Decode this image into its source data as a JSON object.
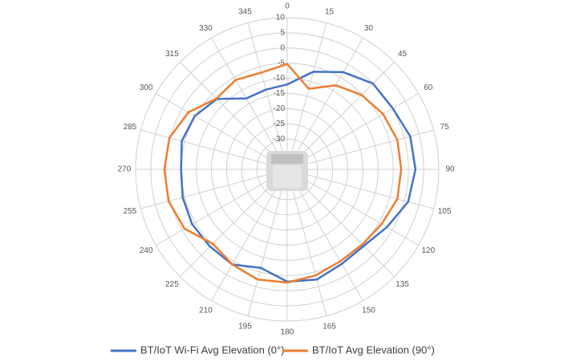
{
  "chart_data": {
    "type": "polar",
    "theta": [
      0,
      15,
      30,
      45,
      60,
      75,
      90,
      105,
      120,
      135,
      150,
      165,
      180,
      195,
      210,
      225,
      240,
      255,
      270,
      285,
      300,
      315,
      330,
      345
    ],
    "thetaticks": [
      0,
      15,
      30,
      45,
      60,
      75,
      90,
      105,
      120,
      135,
      150,
      165,
      180,
      195,
      210,
      225,
      240,
      255,
      270,
      285,
      300,
      315,
      330,
      345
    ],
    "rlim": [
      -40,
      10
    ],
    "rticks": [
      10,
      5,
      0,
      -5,
      -10,
      -15,
      -20,
      -25,
      -30
    ],
    "series": [
      {
        "name": "BT/IoT Wi-Fi Avg Elevation (0°)",
        "color": "#4472c4",
        "values": [
          -12,
          -6.7,
          -3,
          0,
          0.2,
          2,
          2.3,
          1.3,
          -2,
          -4.3,
          -4,
          -2.4,
          -3,
          -6.4,
          -3.8,
          -4,
          -3.8,
          -4.3,
          -5,
          -4,
          -4.8,
          -7.2,
          -13,
          -12.8
        ]
      },
      {
        "name": "BT/IoT Avg Elevation (90°)",
        "color": "#ed7d31",
        "values": [
          -5.3,
          -12.5,
          -8,
          -5.3,
          -3.5,
          -2.4,
          -2.4,
          -2.4,
          -4,
          -5,
          -5,
          -3.8,
          -2.7,
          -2.4,
          -3.8,
          -5.3,
          -0.9,
          0.5,
          0.5,
          0.2,
          -2.4,
          -7,
          -6,
          -7
        ]
      }
    ]
  }
}
